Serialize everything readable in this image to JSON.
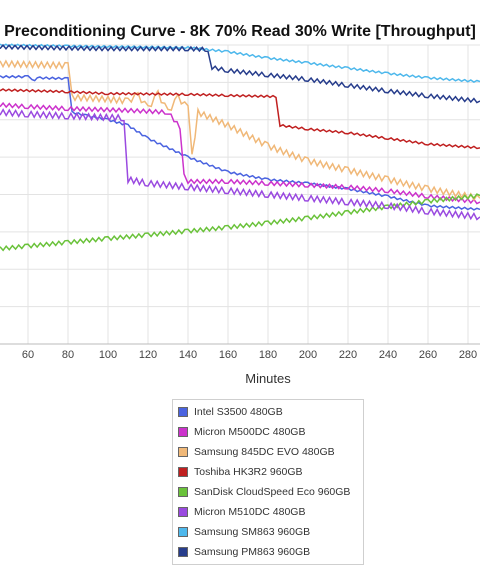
{
  "chart_data": {
    "type": "line",
    "title": "Preconditioning Curve - 8K 70% Read 30% Write [Throughput]",
    "xlabel": "Minutes",
    "ylabel": "",
    "xlim": [
      46,
      286
    ],
    "ylim": [
      0,
      8
    ],
    "x_ticks": [
      60,
      80,
      100,
      120,
      140,
      160,
      180,
      200,
      220,
      240,
      260,
      280
    ],
    "grid": true,
    "legend_placement": "bottom-center",
    "series": [
      {
        "name": "Intel S3500 480GB",
        "color": "#4a63e0",
        "points": [
          [
            46,
            7.15
          ],
          [
            60,
            7.15
          ],
          [
            62,
            7.05
          ],
          [
            66,
            7.12
          ],
          [
            80,
            7.1
          ],
          [
            82,
            6.2
          ],
          [
            90,
            6.1
          ],
          [
            100,
            6.0
          ],
          [
            110,
            5.85
          ],
          [
            120,
            5.5
          ],
          [
            140,
            5.0
          ],
          [
            160,
            4.6
          ],
          [
            180,
            4.4
          ],
          [
            200,
            4.3
          ],
          [
            220,
            4.15
          ],
          [
            240,
            3.95
          ],
          [
            260,
            3.7
          ],
          [
            286,
            3.6
          ]
        ]
      },
      {
        "name": "Micron M500DC 480GB",
        "color": "#cc33cc",
        "points": [
          [
            46,
            6.4
          ],
          [
            60,
            6.35
          ],
          [
            80,
            6.3
          ],
          [
            110,
            6.25
          ],
          [
            130,
            6.2
          ],
          [
            136,
            5.8
          ],
          [
            138,
            4.6
          ],
          [
            140,
            4.35
          ],
          [
            160,
            4.35
          ],
          [
            180,
            4.3
          ],
          [
            200,
            4.25
          ],
          [
            220,
            4.2
          ],
          [
            240,
            4.1
          ],
          [
            260,
            3.95
          ],
          [
            286,
            3.8
          ]
        ]
      },
      {
        "name": "Samsung 845DC EVO 480GB",
        "color": "#f0b878",
        "points": [
          [
            46,
            7.5
          ],
          [
            80,
            7.45
          ],
          [
            82,
            6.6
          ],
          [
            100,
            6.55
          ],
          [
            110,
            6.5
          ],
          [
            115,
            6.65
          ],
          [
            120,
            6.3
          ],
          [
            125,
            6.7
          ],
          [
            130,
            6.2
          ],
          [
            135,
            6.6
          ],
          [
            140,
            6.3
          ],
          [
            142,
            5.0
          ],
          [
            145,
            6.2
          ],
          [
            160,
            5.85
          ],
          [
            180,
            5.3
          ],
          [
            200,
            4.9
          ],
          [
            220,
            4.65
          ],
          [
            240,
            4.4
          ],
          [
            260,
            4.15
          ],
          [
            286,
            3.9
          ]
        ]
      },
      {
        "name": "Toshiba HK3R2 960GB",
        "color": "#c02020",
        "points": [
          [
            46,
            6.8
          ],
          [
            80,
            6.75
          ],
          [
            100,
            6.7
          ],
          [
            140,
            6.68
          ],
          [
            160,
            6.65
          ],
          [
            184,
            6.62
          ],
          [
            186,
            5.85
          ],
          [
            200,
            5.75
          ],
          [
            220,
            5.65
          ],
          [
            240,
            5.5
          ],
          [
            260,
            5.35
          ],
          [
            286,
            5.25
          ]
        ]
      },
      {
        "name": "SanDisk CloudSpeed Eco 960GB",
        "color": "#6ac23a",
        "points": [
          [
            46,
            2.55
          ],
          [
            60,
            2.62
          ],
          [
            80,
            2.72
          ],
          [
            100,
            2.82
          ],
          [
            120,
            2.92
          ],
          [
            140,
            3.02
          ],
          [
            160,
            3.12
          ],
          [
            180,
            3.24
          ],
          [
            200,
            3.37
          ],
          [
            220,
            3.52
          ],
          [
            240,
            3.67
          ],
          [
            260,
            3.82
          ],
          [
            286,
            3.97
          ]
        ]
      },
      {
        "name": "Micron M510DC 480GB",
        "color": "#9a4ae0",
        "points": [
          [
            46,
            6.2
          ],
          [
            60,
            6.15
          ],
          [
            80,
            6.1
          ],
          [
            108,
            6.05
          ],
          [
            110,
            4.4
          ],
          [
            120,
            4.3
          ],
          [
            140,
            4.2
          ],
          [
            160,
            4.1
          ],
          [
            180,
            4.0
          ],
          [
            200,
            3.9
          ],
          [
            220,
            3.8
          ],
          [
            240,
            3.7
          ],
          [
            260,
            3.55
          ],
          [
            286,
            3.4
          ]
        ]
      },
      {
        "name": "Samsung SM863 960GB",
        "color": "#4eb8ec",
        "points": [
          [
            46,
            8.0
          ],
          [
            80,
            7.97
          ],
          [
            110,
            7.95
          ],
          [
            140,
            7.93
          ],
          [
            160,
            7.82
          ],
          [
            180,
            7.65
          ],
          [
            200,
            7.52
          ],
          [
            220,
            7.38
          ],
          [
            240,
            7.24
          ],
          [
            260,
            7.12
          ],
          [
            286,
            7.02
          ]
        ]
      },
      {
        "name": "Samsung PM863 960GB",
        "color": "#273d8c",
        "points": [
          [
            46,
            7.95
          ],
          [
            100,
            7.9
          ],
          [
            140,
            7.9
          ],
          [
            150,
            7.88
          ],
          [
            152,
            7.4
          ],
          [
            160,
            7.32
          ],
          [
            180,
            7.2
          ],
          [
            200,
            7.08
          ],
          [
            220,
            6.92
          ],
          [
            240,
            6.77
          ],
          [
            260,
            6.64
          ],
          [
            286,
            6.5
          ]
        ]
      }
    ]
  }
}
